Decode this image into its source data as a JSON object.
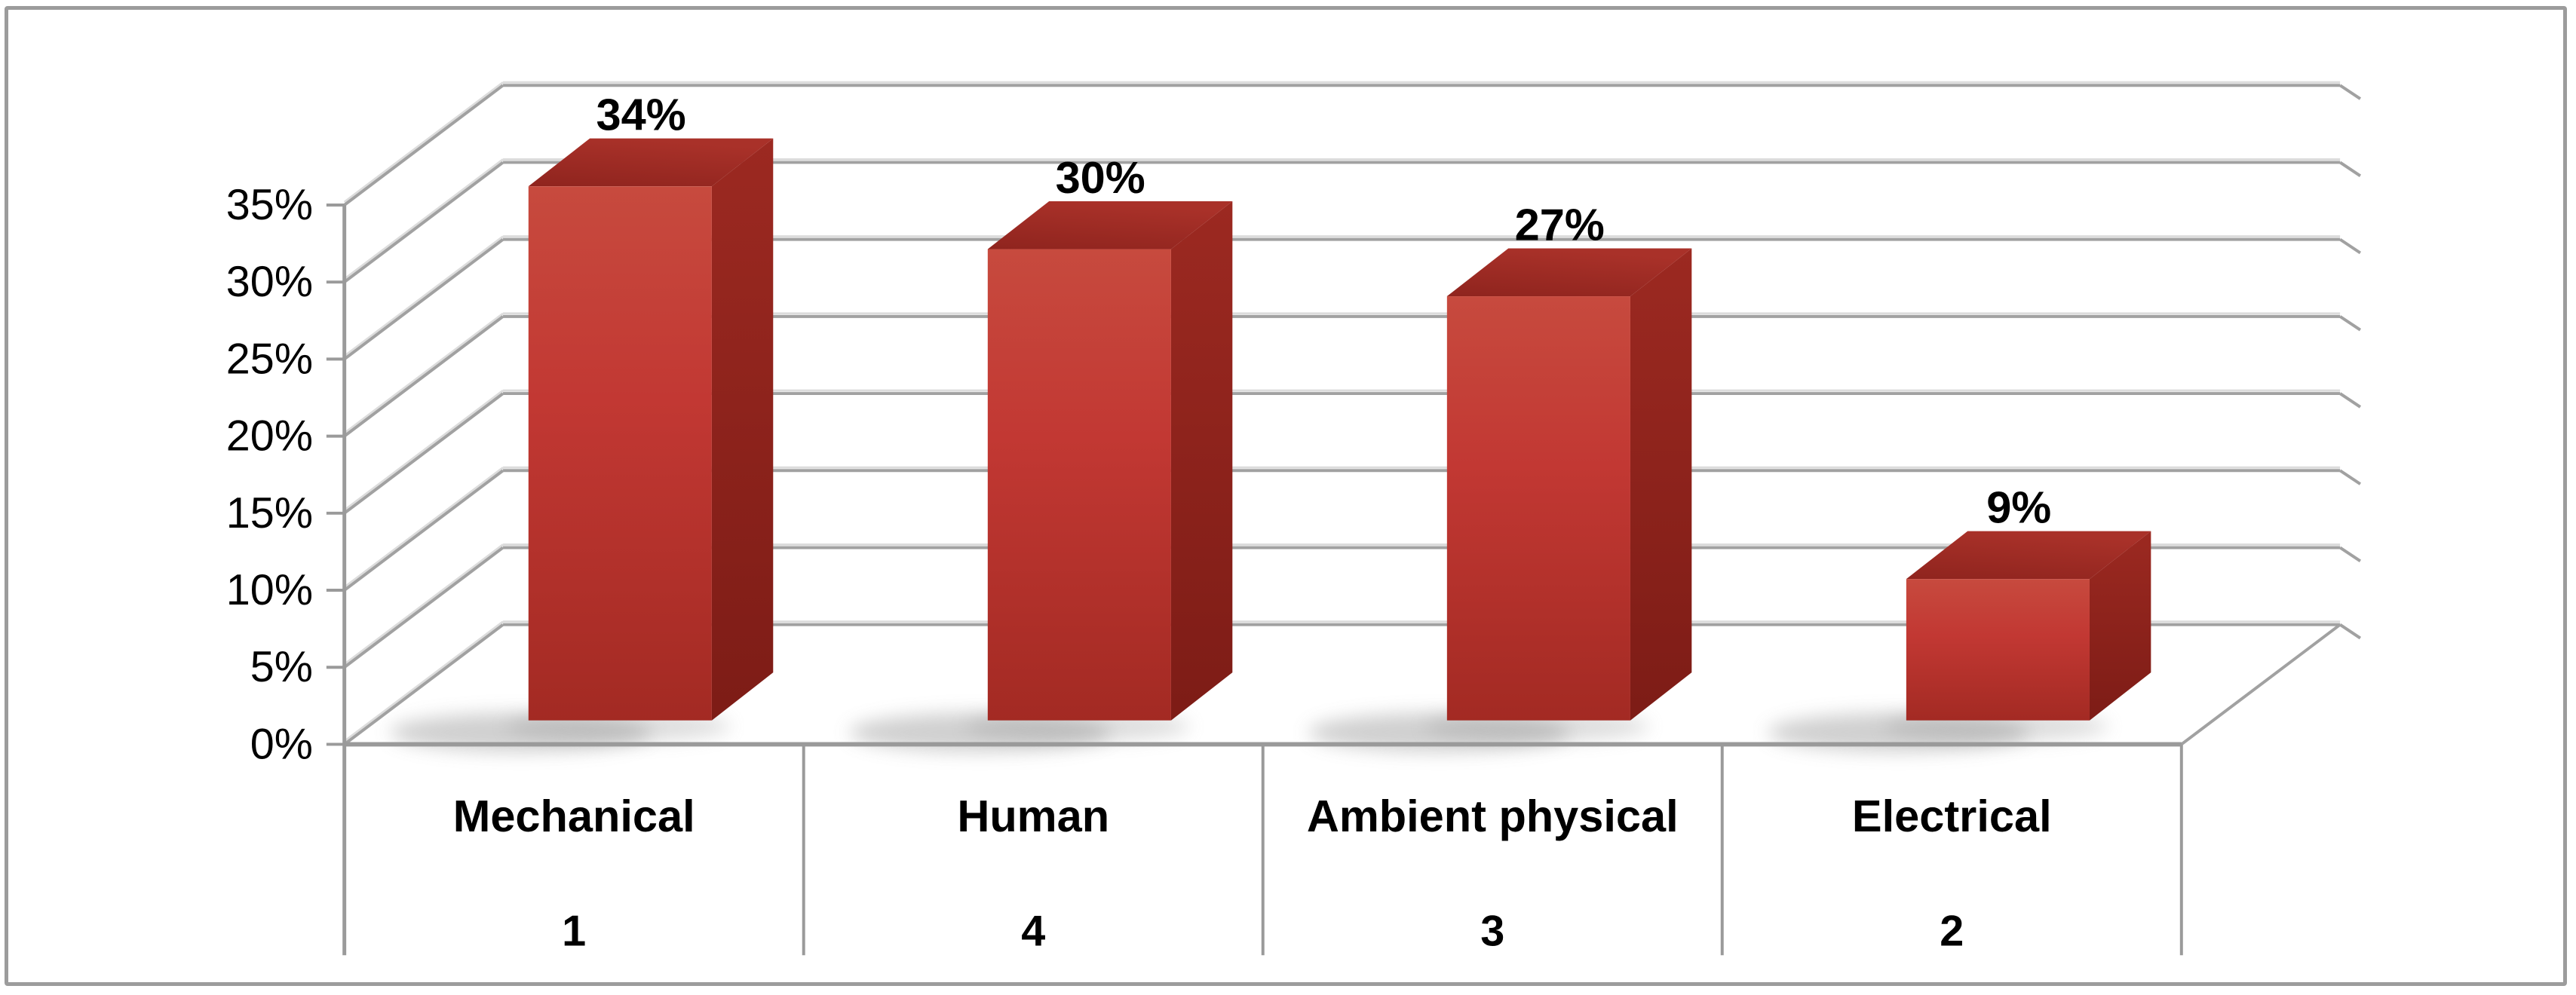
{
  "figure": {
    "background": "#ffffff",
    "border_color": "#9c9c9c"
  },
  "chart_data": {
    "type": "bar",
    "style": "3d-column",
    "title": "",
    "xlabel": "",
    "ylabel": "",
    "categories": [
      "Mechanical",
      "Human",
      "Ambient physical",
      "Electrical"
    ],
    "category_numbers": [
      "1",
      "4",
      "3",
      "2"
    ],
    "values": [
      34,
      30,
      27,
      9
    ],
    "data_labels": [
      "34%",
      "30%",
      "27%",
      "9%"
    ],
    "y_ticks": [
      "0%",
      "5%",
      "10%",
      "15%",
      "20%",
      "25%",
      "30%",
      "35%"
    ],
    "ylim": [
      0,
      35
    ],
    "y_tick_step": 5,
    "grid": true,
    "legend": false,
    "colors": {
      "bar_front_top": "#c74a3e",
      "bar_front_mid": "#c23833",
      "bar_front_bottom": "#a32a23",
      "bar_top_near": "#8f241e",
      "bar_top_far": "#a93129",
      "bar_side_top": "#9c2921",
      "bar_side_bottom": "#7d1c16",
      "gridline": "#a1a1a1",
      "gridline_highlight": "#dcdcdc",
      "axis": "#9a9a9a",
      "text": "#000000",
      "shadow": "#8f8f8f"
    }
  }
}
